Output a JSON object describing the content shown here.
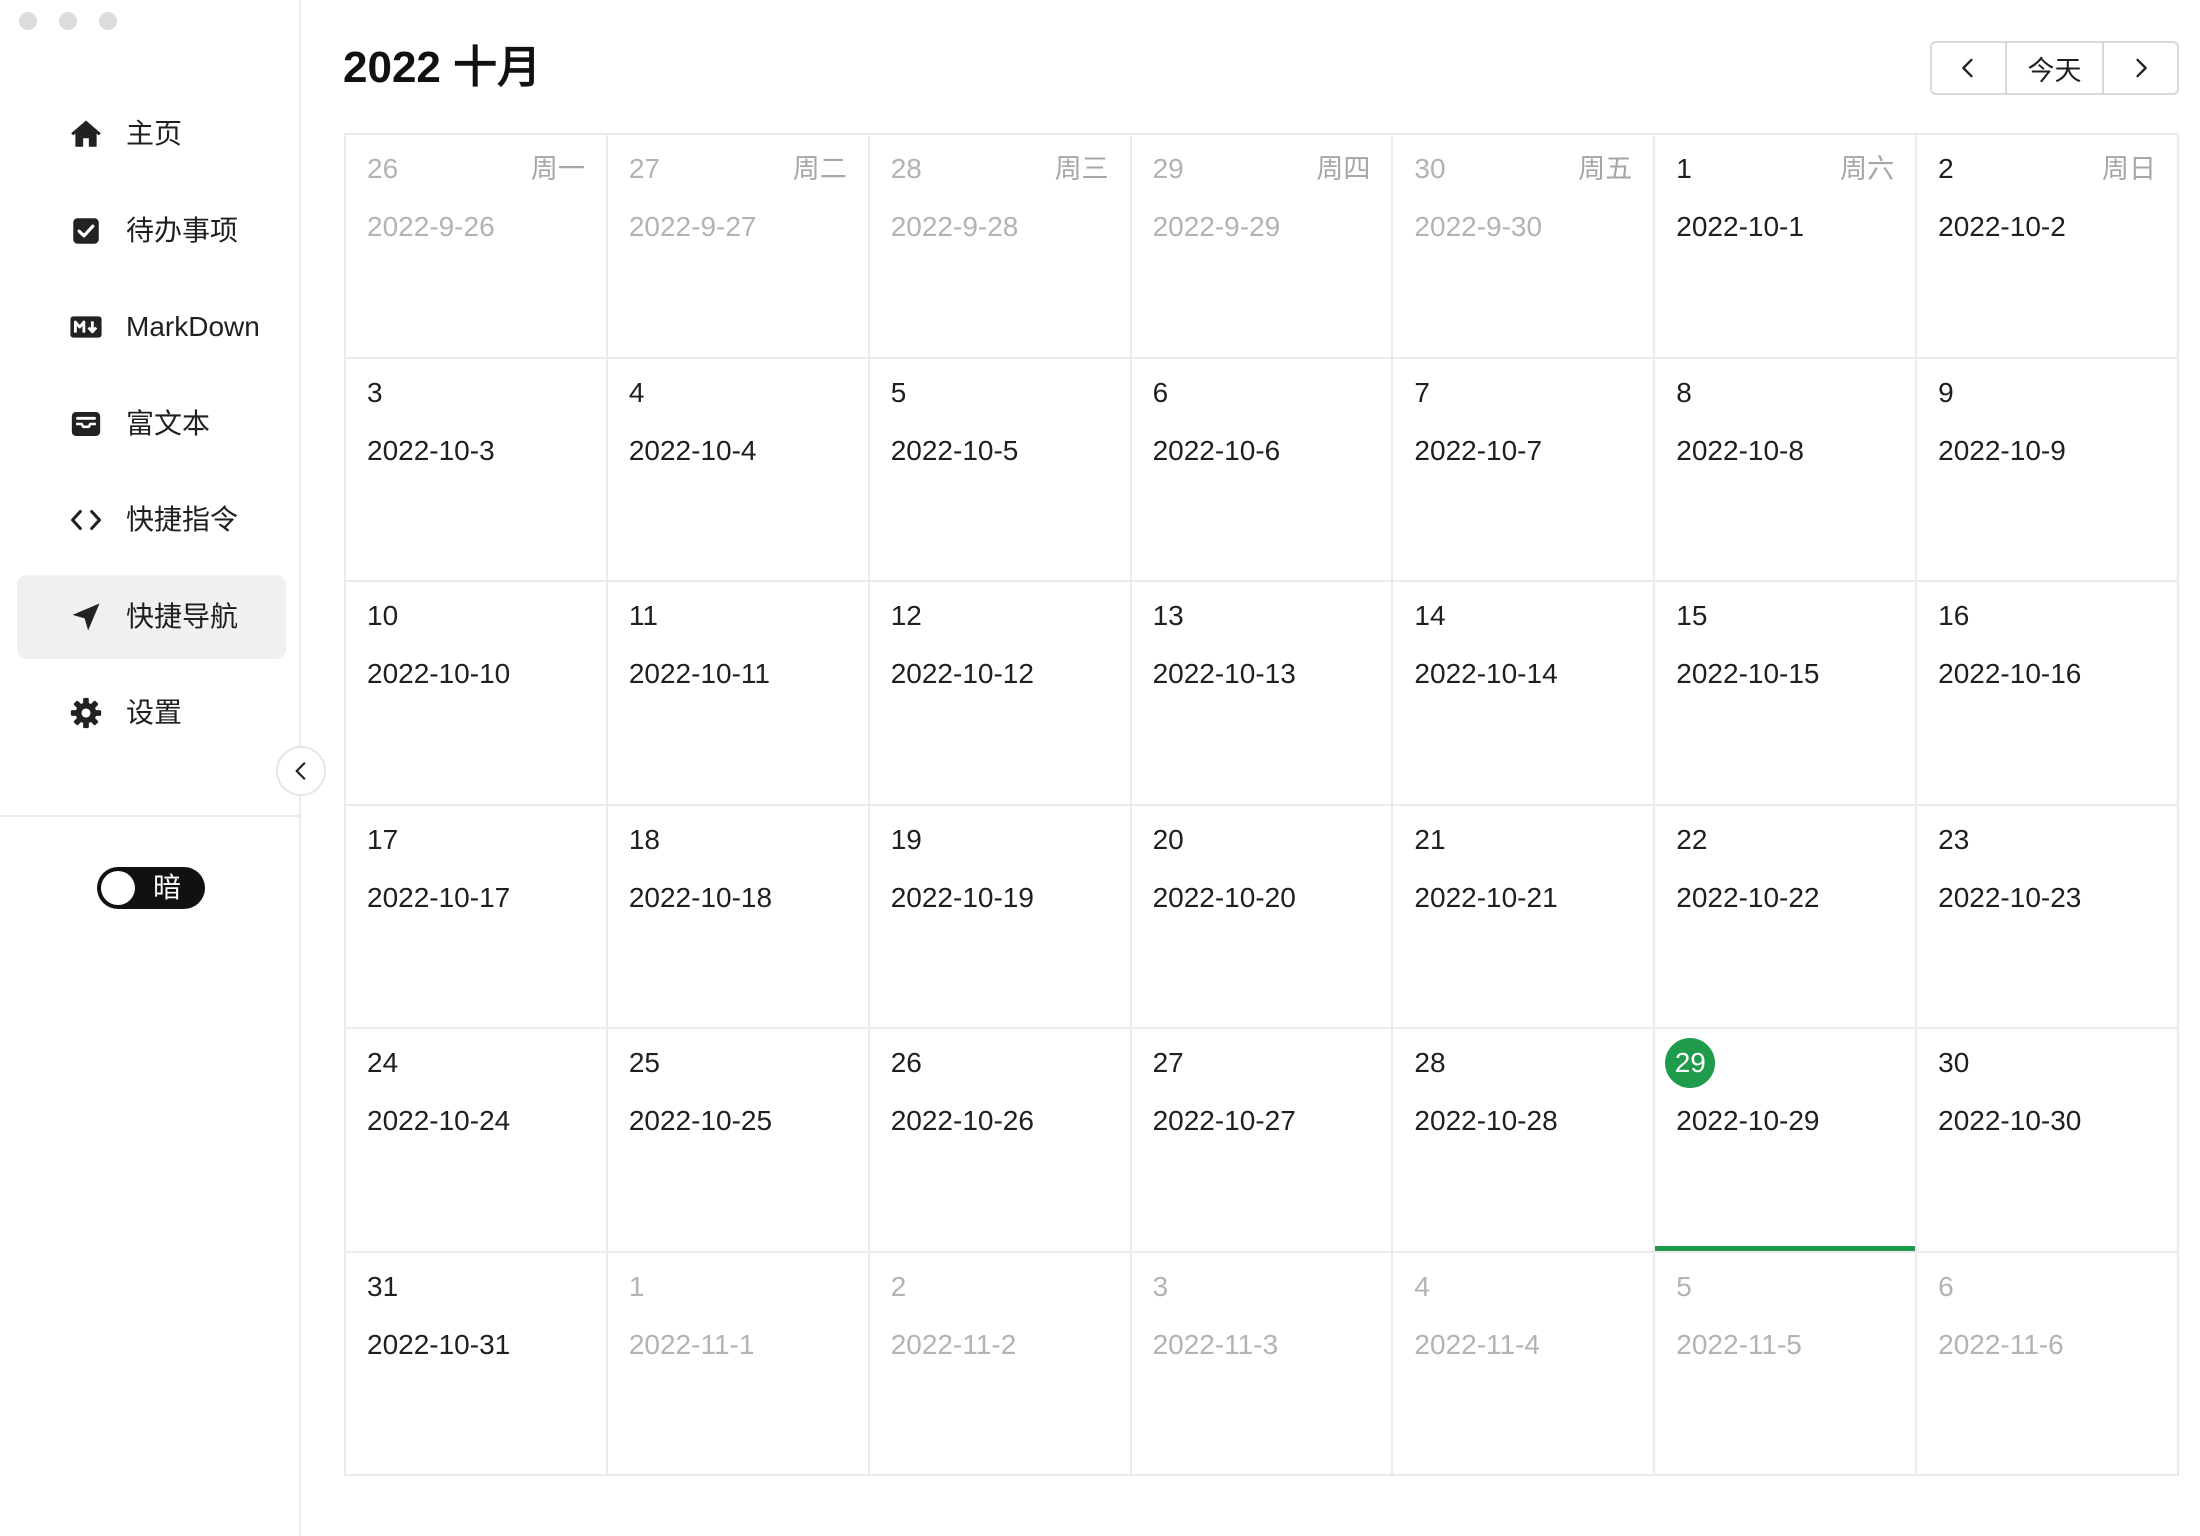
{
  "sidebar": {
    "items": [
      {
        "label": "主页",
        "icon": "home-icon",
        "active": false
      },
      {
        "label": "待办事项",
        "icon": "checkbox-icon",
        "active": false
      },
      {
        "label": "MarkDown",
        "icon": "markdown-icon",
        "active": false
      },
      {
        "label": "富文本",
        "icon": "inbox-icon",
        "active": false
      },
      {
        "label": "快捷指令",
        "icon": "code-icon",
        "active": false
      },
      {
        "label": "快捷导航",
        "icon": "navigation-arrow-icon",
        "active": true
      },
      {
        "label": "设置",
        "icon": "gear-icon",
        "active": false
      }
    ],
    "collapse_icon": "chevron-left-icon",
    "theme_toggle": {
      "label": "暗"
    }
  },
  "header": {
    "title": "2022 十月",
    "prev_icon": "chevron-left-icon",
    "today_label": "今天",
    "next_icon": "chevron-right-icon"
  },
  "colors": {
    "accent": "#1e9b4b",
    "text": "#1f1f1f",
    "muted": "#b3b3b3"
  },
  "calendar": {
    "weekdays": [
      "周一",
      "周二",
      "周三",
      "周四",
      "周五",
      "周六",
      "周日"
    ],
    "today": "2022-10-29",
    "weeks": [
      [
        {
          "day": "26",
          "date": "2022-9-26",
          "muted": true
        },
        {
          "day": "27",
          "date": "2022-9-27",
          "muted": true
        },
        {
          "day": "28",
          "date": "2022-9-28",
          "muted": true
        },
        {
          "day": "29",
          "date": "2022-9-29",
          "muted": true
        },
        {
          "day": "30",
          "date": "2022-9-30",
          "muted": true
        },
        {
          "day": "1",
          "date": "2022-10-1",
          "muted": false
        },
        {
          "day": "2",
          "date": "2022-10-2",
          "muted": false
        }
      ],
      [
        {
          "day": "3",
          "date": "2022-10-3",
          "muted": false
        },
        {
          "day": "4",
          "date": "2022-10-4",
          "muted": false
        },
        {
          "day": "5",
          "date": "2022-10-5",
          "muted": false
        },
        {
          "day": "6",
          "date": "2022-10-6",
          "muted": false
        },
        {
          "day": "7",
          "date": "2022-10-7",
          "muted": false
        },
        {
          "day": "8",
          "date": "2022-10-8",
          "muted": false
        },
        {
          "day": "9",
          "date": "2022-10-9",
          "muted": false
        }
      ],
      [
        {
          "day": "10",
          "date": "2022-10-10",
          "muted": false
        },
        {
          "day": "11",
          "date": "2022-10-11",
          "muted": false
        },
        {
          "day": "12",
          "date": "2022-10-12",
          "muted": false
        },
        {
          "day": "13",
          "date": "2022-10-13",
          "muted": false
        },
        {
          "day": "14",
          "date": "2022-10-14",
          "muted": false
        },
        {
          "day": "15",
          "date": "2022-10-15",
          "muted": false
        },
        {
          "day": "16",
          "date": "2022-10-16",
          "muted": false
        }
      ],
      [
        {
          "day": "17",
          "date": "2022-10-17",
          "muted": false
        },
        {
          "day": "18",
          "date": "2022-10-18",
          "muted": false
        },
        {
          "day": "19",
          "date": "2022-10-19",
          "muted": false
        },
        {
          "day": "20",
          "date": "2022-10-20",
          "muted": false
        },
        {
          "day": "21",
          "date": "2022-10-21",
          "muted": false
        },
        {
          "day": "22",
          "date": "2022-10-22",
          "muted": false
        },
        {
          "day": "23",
          "date": "2022-10-23",
          "muted": false
        }
      ],
      [
        {
          "day": "24",
          "date": "2022-10-24",
          "muted": false
        },
        {
          "day": "25",
          "date": "2022-10-25",
          "muted": false
        },
        {
          "day": "26",
          "date": "2022-10-26",
          "muted": false
        },
        {
          "day": "27",
          "date": "2022-10-27",
          "muted": false
        },
        {
          "day": "28",
          "date": "2022-10-28",
          "muted": false
        },
        {
          "day": "29",
          "date": "2022-10-29",
          "muted": false
        },
        {
          "day": "30",
          "date": "2022-10-30",
          "muted": false
        }
      ],
      [
        {
          "day": "31",
          "date": "2022-10-31",
          "muted": false
        },
        {
          "day": "1",
          "date": "2022-11-1",
          "muted": true
        },
        {
          "day": "2",
          "date": "2022-11-2",
          "muted": true
        },
        {
          "day": "3",
          "date": "2022-11-3",
          "muted": true
        },
        {
          "day": "4",
          "date": "2022-11-4",
          "muted": true
        },
        {
          "day": "5",
          "date": "2022-11-5",
          "muted": true
        },
        {
          "day": "6",
          "date": "2022-11-6",
          "muted": true
        }
      ]
    ]
  }
}
